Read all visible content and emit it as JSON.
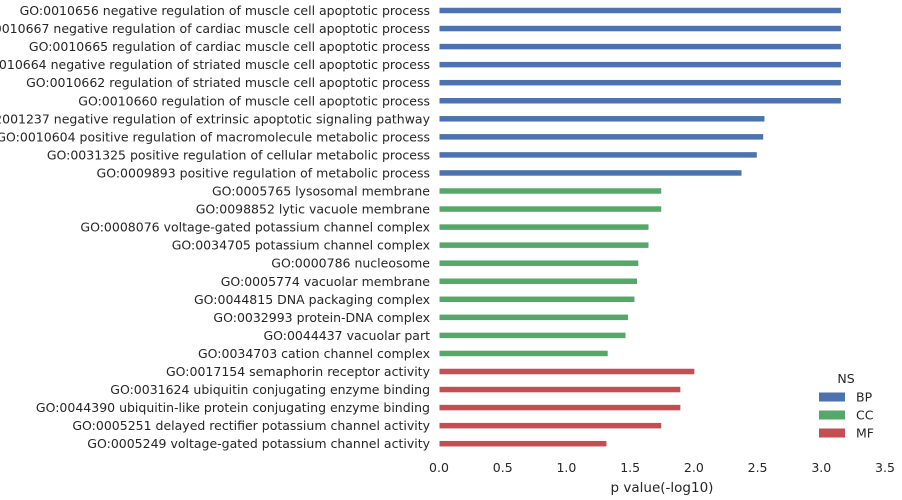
{
  "chart_data": {
    "type": "bar",
    "orientation": "horizontal",
    "title": "",
    "xlabel": "p value(-log10)",
    "ylabel": "",
    "xlim": [
      0,
      3.5
    ],
    "xticks": [
      "0.0",
      "0.5",
      "1.0",
      "1.5",
      "2.0",
      "2.5",
      "3.0",
      "3.5"
    ],
    "grid": false,
    "legend": {
      "title": "NS",
      "placement": "bottom-right",
      "entries": [
        {
          "name": "BP",
          "color": "#4c72b0"
        },
        {
          "name": "CC",
          "color": "#55a868"
        },
        {
          "name": "MF",
          "color": "#c44e52"
        }
      ]
    },
    "bars": [
      {
        "label": "GO:0010656 negative regulation of muscle cell apoptotic process",
        "ns": "BP",
        "value": 3.15
      },
      {
        "label": "GO:0010667 negative regulation of cardiac muscle cell apoptotic process",
        "ns": "BP",
        "value": 3.15
      },
      {
        "label": "GO:0010665 regulation of cardiac muscle cell apoptotic process",
        "ns": "BP",
        "value": 3.15
      },
      {
        "label": "GO:0010664 negative regulation of striated muscle cell apoptotic process",
        "ns": "BP",
        "value": 3.15
      },
      {
        "label": "GO:0010662 regulation of striated muscle cell apoptotic process",
        "ns": "BP",
        "value": 3.15
      },
      {
        "label": "GO:0010660 regulation of muscle cell apoptotic process",
        "ns": "BP",
        "value": 3.15
      },
      {
        "label": "GO:2001237 negative regulation of extrinsic apoptotic signaling pathway",
        "ns": "BP",
        "value": 2.55
      },
      {
        "label": "GO:0010604 positive regulation of macromolecule metabolic process",
        "ns": "BP",
        "value": 2.54
      },
      {
        "label": "GO:0031325 positive regulation of cellular metabolic process",
        "ns": "BP",
        "value": 2.49
      },
      {
        "label": "GO:0009893 positive regulation of metabolic process",
        "ns": "BP",
        "value": 2.37
      },
      {
        "label": "GO:0005765 lysosomal membrane",
        "ns": "CC",
        "value": 1.74
      },
      {
        "label": "GO:0098852 lytic vacuole membrane",
        "ns": "CC",
        "value": 1.74
      },
      {
        "label": "GO:0008076 voltage-gated potassium channel complex",
        "ns": "CC",
        "value": 1.64
      },
      {
        "label": "GO:0034705 potassium channel complex",
        "ns": "CC",
        "value": 1.64
      },
      {
        "label": "GO:0000786 nucleosome",
        "ns": "CC",
        "value": 1.56
      },
      {
        "label": "GO:0005774 vacuolar membrane",
        "ns": "CC",
        "value": 1.55
      },
      {
        "label": "GO:0044815 DNA packaging complex",
        "ns": "CC",
        "value": 1.53
      },
      {
        "label": "GO:0032993 protein-DNA complex",
        "ns": "CC",
        "value": 1.48
      },
      {
        "label": "GO:0044437 vacuolar part",
        "ns": "CC",
        "value": 1.46
      },
      {
        "label": "GO:0034703 cation channel complex",
        "ns": "CC",
        "value": 1.32
      },
      {
        "label": "GO:0017154 semaphorin receptor activity",
        "ns": "MF",
        "value": 2.0
      },
      {
        "label": "GO:0031624 ubiquitin conjugating enzyme binding",
        "ns": "MF",
        "value": 1.89
      },
      {
        "label": "GO:0044390 ubiquitin-like protein conjugating enzyme binding",
        "ns": "MF",
        "value": 1.89
      },
      {
        "label": "GO:0005251 delayed rectifier potassium channel activity",
        "ns": "MF",
        "value": 1.74
      },
      {
        "label": "GO:0005249 voltage-gated potassium channel activity",
        "ns": "MF",
        "value": 1.31
      }
    ]
  }
}
